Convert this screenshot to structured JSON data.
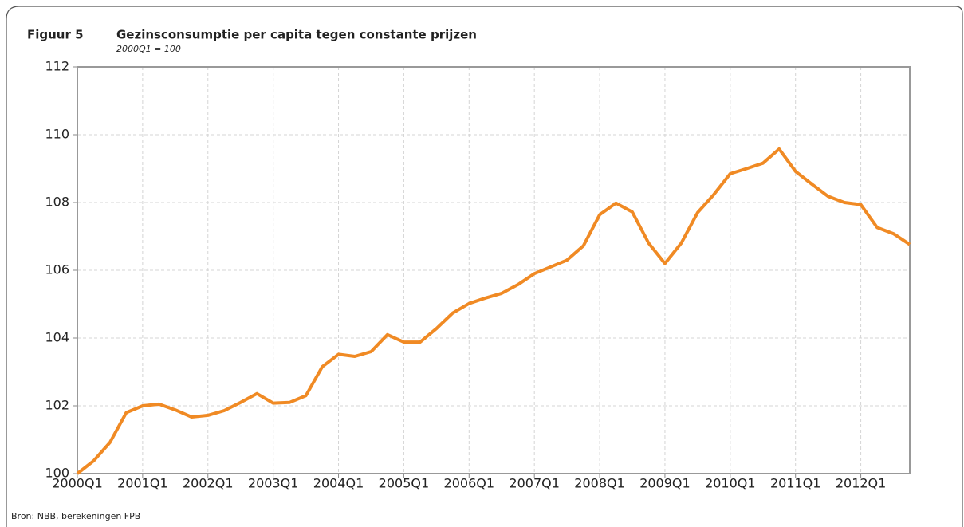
{
  "chart_data": {
    "type": "line",
    "figure_label": "Figuur 5",
    "title": "Gezinsconsumptie per capita tegen constante prijzen",
    "subtitle": "2000Q1 = 100",
    "source": "Bron: NBB, berekeningen FPB",
    "categories": [
      "2000Q1",
      null,
      null,
      null,
      "2001Q1",
      null,
      null,
      null,
      "2002Q1",
      null,
      null,
      null,
      "2003Q1",
      null,
      null,
      null,
      "2004Q1",
      null,
      null,
      null,
      "2005Q1",
      null,
      null,
      null,
      "2006Q1",
      null,
      null,
      null,
      "2007Q1",
      null,
      null,
      null,
      "2008Q1",
      null,
      null,
      null,
      "2009Q1",
      null,
      null,
      null,
      "2010Q1",
      null,
      null,
      null,
      "2011Q1",
      null,
      null,
      null,
      "2012Q1",
      null,
      null,
      null
    ],
    "values": [
      100.0,
      100.38,
      100.92,
      101.8,
      102.0,
      102.05,
      101.88,
      101.67,
      101.72,
      101.86,
      102.1,
      102.36,
      102.08,
      102.1,
      102.3,
      103.15,
      103.52,
      103.46,
      103.6,
      104.1,
      103.88,
      103.88,
      104.28,
      104.74,
      105.02,
      105.18,
      105.32,
      105.58,
      105.9,
      106.1,
      106.3,
      106.72,
      107.64,
      107.98,
      107.72,
      106.8,
      106.2,
      106.8,
      107.7,
      108.24,
      108.85,
      109.0,
      109.16,
      109.58,
      108.92,
      108.54,
      108.18,
      108.0,
      107.94,
      107.26,
      107.08,
      106.76
    ],
    "color": "#f08a24",
    "ylim": [
      100,
      112
    ],
    "yticks": [
      100,
      102,
      104,
      106,
      108,
      110,
      112
    ],
    "grid": true
  }
}
